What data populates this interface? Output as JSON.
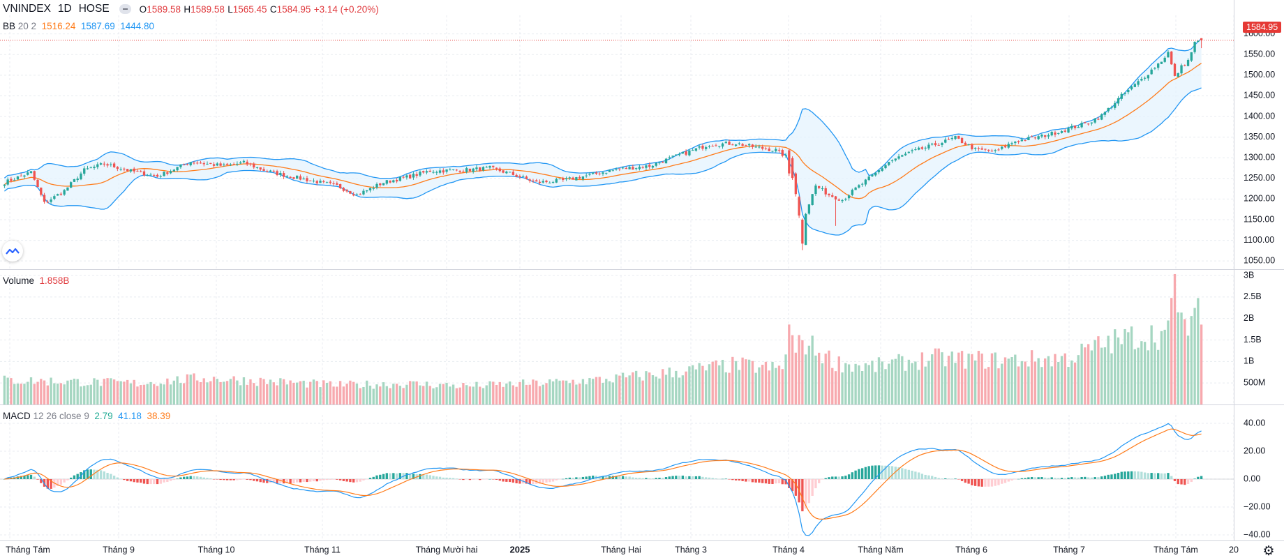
{
  "header": {
    "symbol": "VNINDEX",
    "interval": "1D",
    "exchange": "HOSE",
    "open_label": "O",
    "open": "1589.58",
    "high_label": "H",
    "high": "1589.58",
    "low_label": "L",
    "low": "1565.45",
    "close_label": "C",
    "close": "1584.95",
    "change": "+3.14 (+0.20%)"
  },
  "bb_legend": {
    "name": "BB",
    "params": "20 2",
    "basis": "1516.24",
    "upper": "1587.69",
    "lower": "1444.80"
  },
  "volume_legend": {
    "name": "Volume",
    "value": "1.858B"
  },
  "macd_legend": {
    "name": "MACD",
    "params": "12 26 close 9",
    "hist": "2.79",
    "macd": "41.18",
    "signal": "38.39"
  },
  "last_price_tag": "1584.95",
  "colors": {
    "up": "#26a69a",
    "down": "#ef5350",
    "vol_up": "#a5d6c1",
    "vol_down": "#f7a9ae",
    "bb_upper": "#2196f3",
    "bb_lower": "#2196f3",
    "bb_basis": "#ff7b19",
    "bb_fill": "#e3f2fd",
    "macd_line": "#2196f3",
    "signal_line": "#ff7b19",
    "hist_pos_strong": "#26a69a",
    "hist_pos_weak": "#b2dfdb",
    "hist_neg_strong": "#ef5350",
    "hist_neg_weak": "#ffcdd2",
    "grid": "#e8ebf0",
    "last_price_line": "#e53935"
  },
  "icons": {
    "logo": "tradingview-logo-icon",
    "settings": "gear-icon",
    "visibility": "eye-icon"
  },
  "chart_data": {
    "type": "candlestick",
    "price_axis": {
      "ticks": [
        "1600.00",
        "1550.00",
        "1500.00",
        "1450.00",
        "1400.00",
        "1350.00",
        "1300.00",
        "1250.00",
        "1200.00",
        "1150.00",
        "1100.00",
        "1050.00"
      ],
      "range": [
        1030,
        1645
      ]
    },
    "volume_axis": {
      "ticks": [
        "3B",
        "2.5B",
        "2B",
        "1.5B",
        "1B",
        "500M"
      ],
      "range": [
        0,
        3.0
      ]
    },
    "macd_axis": {
      "ticks": [
        "40.00",
        "20.00",
        "0.00",
        "−20.00",
        "−40.00"
      ],
      "range": [
        -44,
        46
      ]
    },
    "time_axis": [
      "Tháng Tám",
      "Tháng 9",
      "Tháng 10",
      "Tháng 11",
      "Tháng Mười hai",
      "2025",
      "Tháng Hai",
      "Tháng 3",
      "Tháng 4",
      "Tháng Năm",
      "Tháng 6",
      "Tháng 7",
      "Tháng Tám",
      "20"
    ],
    "anchors": [
      [
        0,
        1240
      ],
      [
        8,
        1265
      ],
      [
        12,
        1190
      ],
      [
        18,
        1220
      ],
      [
        24,
        1270
      ],
      [
        30,
        1285
      ],
      [
        38,
        1268
      ],
      [
        46,
        1255
      ],
      [
        56,
        1290
      ],
      [
        66,
        1280
      ],
      [
        72,
        1288
      ],
      [
        78,
        1270
      ],
      [
        84,
        1258
      ],
      [
        92,
        1245
      ],
      [
        100,
        1232
      ],
      [
        106,
        1210
      ],
      [
        114,
        1240
      ],
      [
        122,
        1255
      ],
      [
        128,
        1268
      ],
      [
        138,
        1270
      ],
      [
        146,
        1275
      ],
      [
        152,
        1262
      ],
      [
        160,
        1240
      ],
      [
        168,
        1245
      ],
      [
        176,
        1258
      ],
      [
        184,
        1272
      ],
      [
        194,
        1280
      ],
      [
        200,
        1298
      ],
      [
        206,
        1315
      ],
      [
        212,
        1332
      ],
      [
        220,
        1335
      ],
      [
        226,
        1325
      ],
      [
        232,
        1318
      ],
      [
        236,
        1298
      ],
      [
        238,
        1212
      ],
      [
        239,
        1160
      ],
      [
        240,
        1092
      ],
      [
        241,
        1168
      ],
      [
        244,
        1232
      ],
      [
        248,
        1210
      ],
      [
        252,
        1198
      ],
      [
        256,
        1225
      ],
      [
        262,
        1262
      ],
      [
        266,
        1290
      ],
      [
        272,
        1312
      ],
      [
        280,
        1332
      ],
      [
        286,
        1348
      ],
      [
        292,
        1320
      ],
      [
        298,
        1315
      ],
      [
        304,
        1340
      ],
      [
        312,
        1352
      ],
      [
        320,
        1370
      ],
      [
        326,
        1385
      ],
      [
        330,
        1402
      ],
      [
        336,
        1450
      ],
      [
        342,
        1490
      ],
      [
        348,
        1535
      ],
      [
        350,
        1555
      ],
      [
        352,
        1495
      ],
      [
        354,
        1520
      ],
      [
        356,
        1535
      ],
      [
        358,
        1578
      ],
      [
        360,
        1585
      ]
    ],
    "volume_profile": [
      [
        0,
        0.55
      ],
      [
        20,
        0.52
      ],
      [
        40,
        0.48
      ],
      [
        60,
        0.6
      ],
      [
        80,
        0.52
      ],
      [
        100,
        0.44
      ],
      [
        120,
        0.47
      ],
      [
        140,
        0.42
      ],
      [
        160,
        0.48
      ],
      [
        180,
        0.56
      ],
      [
        200,
        0.72
      ],
      [
        220,
        0.9
      ],
      [
        234,
        0.8
      ],
      [
        236,
        1.7
      ],
      [
        238,
        1.2
      ],
      [
        240,
        1.45
      ],
      [
        250,
        0.95
      ],
      [
        260,
        0.85
      ],
      [
        270,
        0.95
      ],
      [
        280,
        1.05
      ],
      [
        300,
        1.0
      ],
      [
        320,
        1.05
      ],
      [
        330,
        1.35
      ],
      [
        340,
        1.55
      ],
      [
        350,
        1.6
      ],
      [
        352,
        2.75
      ],
      [
        356,
        1.3
      ],
      [
        358,
        2.75
      ],
      [
        360,
        1.86
      ]
    ],
    "macd_final": {
      "macd": 41.18,
      "signal": 38.39,
      "hist": 2.79
    }
  }
}
